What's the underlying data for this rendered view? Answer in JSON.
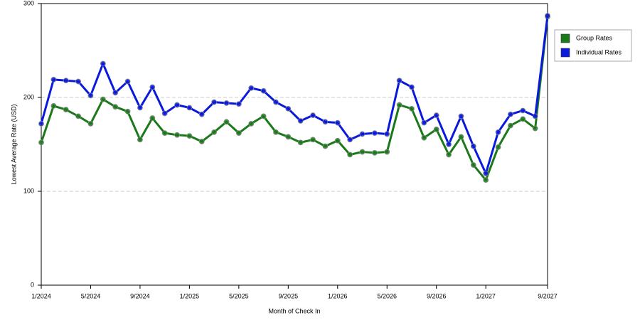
{
  "chart_data": {
    "type": "line",
    "x_label": "Month of Check In",
    "y_label": "Lowest Average Rate (USD)",
    "categories": [
      "1/2024",
      null,
      null,
      null,
      "5/2024",
      null,
      null,
      null,
      "9/2024",
      null,
      null,
      null,
      "1/2025",
      null,
      null,
      null,
      "5/2025",
      null,
      null,
      null,
      "9/2025",
      null,
      null,
      null,
      "1/2026",
      null,
      null,
      null,
      "5/2026",
      null,
      null,
      null,
      "9/2026",
      null,
      null,
      null,
      "1/2027",
      null,
      null,
      null,
      null,
      "9/2027"
    ],
    "series": [
      {
        "name": "Group Rates",
        "color": "#1a7a1a",
        "values": [
          152,
          191,
          187,
          180,
          172,
          198,
          190,
          185,
          155,
          178,
          162,
          160,
          159,
          153,
          163,
          174,
          162,
          172,
          180,
          163,
          158,
          152,
          155,
          148,
          154,
          139,
          142,
          141,
          142,
          192,
          188,
          157,
          166,
          139,
          158,
          128,
          112,
          147,
          170,
          177,
          167,
          286
        ]
      },
      {
        "name": "Individual Rates",
        "color": "#0a1adc",
        "values": [
          172,
          219,
          218,
          217,
          202,
          236,
          205,
          217,
          189,
          211,
          183,
          192,
          189,
          182,
          195,
          194,
          193,
          210,
          207,
          195,
          188,
          175,
          181,
          174,
          173,
          155,
          161,
          162,
          161,
          218,
          211,
          173,
          181,
          150,
          180,
          148,
          119,
          163,
          182,
          186,
          180,
          287
        ]
      }
    ],
    "ylim": [
      0,
      300
    ],
    "yticks": [
      0,
      100,
      200,
      300
    ],
    "grid": true,
    "legend": "right"
  }
}
